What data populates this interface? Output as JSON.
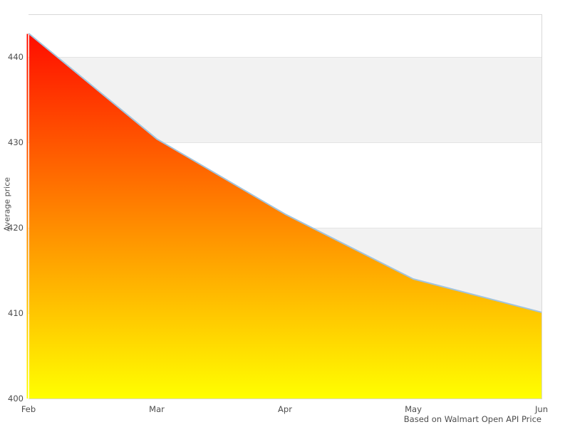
{
  "chart_data": {
    "type": "area",
    "title": "",
    "categories": [
      "Feb",
      "Mar",
      "Apr",
      "May",
      "Jun"
    ],
    "values": [
      442.7,
      430.4,
      421.6,
      414.0,
      410.1
    ],
    "series": [
      {
        "name": "Average price",
        "values": [
          442.7,
          430.4,
          421.6,
          414.0,
          410.1
        ]
      }
    ],
    "xlabel": "",
    "ylabel": "Average price",
    "ylim": [
      400,
      445
    ],
    "yticks": [
      400,
      410,
      420,
      430,
      440
    ],
    "x_tick_labels": [
      "Feb",
      "Mar",
      "Apr",
      "May",
      "Jun"
    ],
    "caption": "Based on Walmart Open API Price",
    "legend": "none",
    "grid": "alternating horizontal bands, no vertical gridlines",
    "band_value_ranges": [
      [
        410,
        420
      ],
      [
        430,
        440
      ]
    ],
    "colors": {
      "gradient_top": "#ff0000",
      "gradient_bottom": "#ffff00",
      "line": "#a2c4dd",
      "band_fill": "#f2f2f2",
      "grid_line": "#e4e4e4",
      "plot_border": "#d8d8d8",
      "label_text": "#4d4d4d",
      "background": "#ffffff"
    }
  }
}
